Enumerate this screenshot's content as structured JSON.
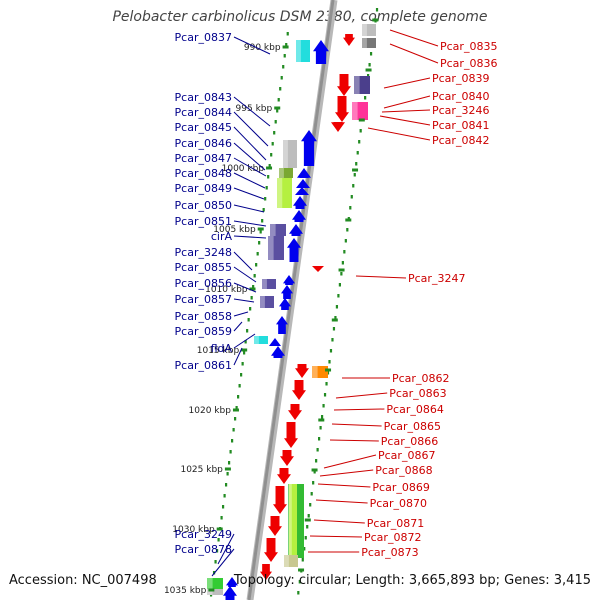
{
  "title": "Pelobacter carbinolicus DSM 2380, complete genome",
  "footer": {
    "accession": "Accession: NC_007498",
    "summary": "Topology: circular; Length: 3,665,893 bp; Genes: 3,415"
  },
  "colors": {
    "forward_gene": "#0000ee",
    "reverse_gene": "#ee0000",
    "left_label": "#00008b",
    "right_label": "#cc0000",
    "tick": "#228b22",
    "backbone": "#909090"
  },
  "kbp_ticks": [
    "990 kbp",
    "995 kbp",
    "1000 kbp",
    "1005 kbp",
    "1010 kbp",
    "1015 kbp",
    "1020 kbp",
    "1025 kbp",
    "1030 kbp",
    "1035 kbp"
  ],
  "left_labels": [
    "Pcar_0837",
    "Pcar_0843",
    "Pcar_0844",
    "Pcar_0845",
    "Pcar_0846",
    "Pcar_0847",
    "Pcar_0848",
    "Pcar_0849",
    "Pcar_0850",
    "Pcar_0851",
    "cirA",
    "Pcar_3248",
    "Pcar_0855",
    "Pcar_0856",
    "Pcar_0857",
    "Pcar_0858",
    "Pcar_0859",
    "fldA",
    "Pcar_0861",
    "Pcar_3249",
    "Pcar_0878"
  ],
  "right_labels": [
    "Pcar_0835",
    "Pcar_0836",
    "Pcar_0839",
    "Pcar_0840",
    "Pcar_3246",
    "Pcar_0841",
    "Pcar_0842",
    "Pcar_3247",
    "Pcar_0862",
    "Pcar_0863",
    "Pcar_0864",
    "Pcar_0865",
    "Pcar_0866",
    "Pcar_0867",
    "Pcar_0868",
    "Pcar_0869",
    "Pcar_0870",
    "Pcar_0871",
    "Pcar_0872",
    "Pcar_0873"
  ]
}
